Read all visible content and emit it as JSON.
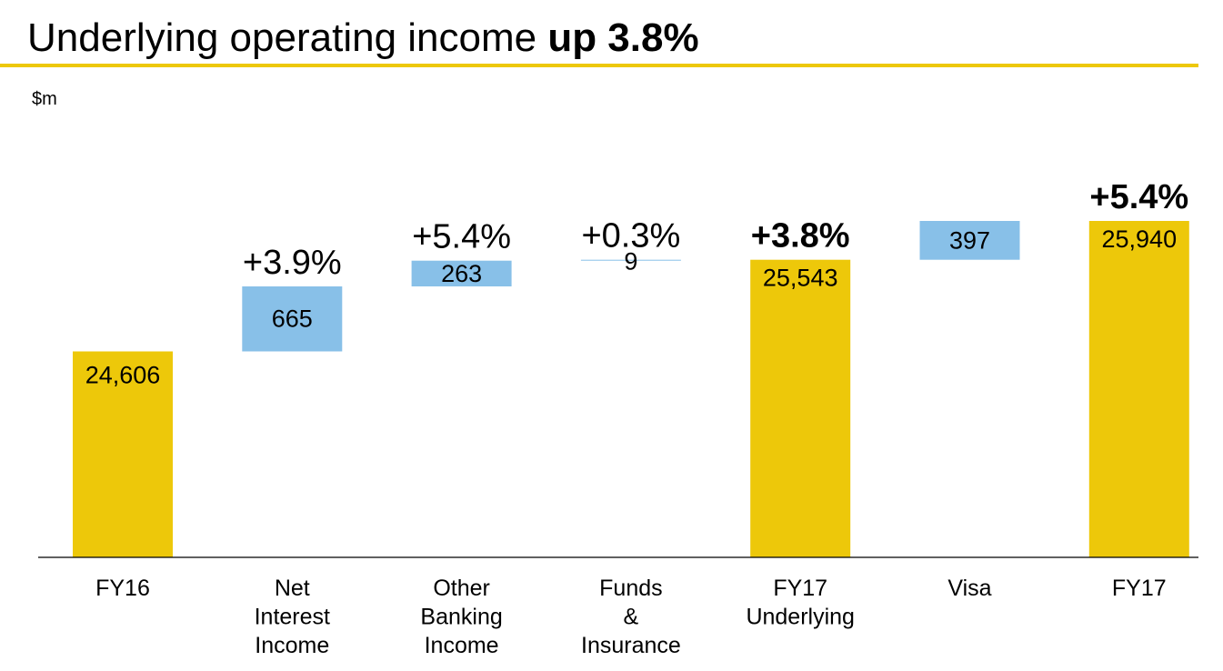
{
  "header": {
    "title_regular": "Underlying operating income ",
    "title_bold": "up 3.8%",
    "unit": "$m"
  },
  "colors": {
    "total": "#EDC80A",
    "delta": "#88C0E8",
    "rule": "#EDC80A",
    "axis": "#000000",
    "text": "#000000"
  },
  "chart_data": {
    "type": "waterfall",
    "categories": [
      [
        "FY16"
      ],
      [
        "Net",
        "Interest",
        "Income"
      ],
      [
        "Other",
        "Banking",
        "Income"
      ],
      [
        "Funds",
        "&",
        "Insurance"
      ],
      [
        "FY17",
        "Underlying"
      ],
      [
        "Visa"
      ],
      [
        "FY17"
      ]
    ],
    "bars": [
      {
        "kind": "total",
        "start": 0,
        "end": 24606,
        "label": "24,606",
        "pct": "",
        "pct_bold": false
      },
      {
        "kind": "delta",
        "start": 24606,
        "end": 25271,
        "label": "665",
        "pct": "+3.9%",
        "pct_bold": false
      },
      {
        "kind": "delta",
        "start": 25271,
        "end": 25534,
        "label": "263",
        "pct": "+5.4%",
        "pct_bold": false
      },
      {
        "kind": "delta",
        "start": 25534,
        "end": 25543,
        "label": "9",
        "pct": "+0.3%",
        "pct_bold": false
      },
      {
        "kind": "total",
        "start": 0,
        "end": 25543,
        "label": "25,543",
        "pct": "+3.8%",
        "pct_bold": true
      },
      {
        "kind": "delta",
        "start": 25543,
        "end": 25940,
        "label": "397",
        "pct": "",
        "pct_bold": false
      },
      {
        "kind": "total",
        "start": 0,
        "end": 25940,
        "label": "25,940",
        "pct": "+5.4%",
        "pct_bold": true
      }
    ],
    "axis": {
      "y_break": true,
      "visible_range": [
        22500,
        25940
      ]
    },
    "grid": false,
    "legend": "none"
  }
}
